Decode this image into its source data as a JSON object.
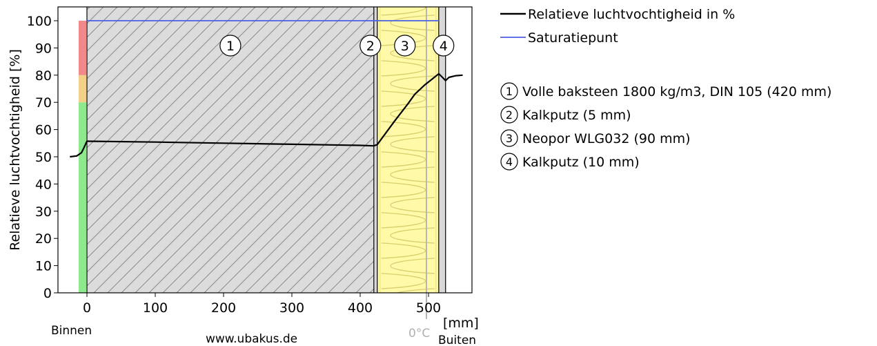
{
  "chart_data": {
    "type": "line",
    "ylabel": "Relatieve luchtvochtigheid [%]",
    "xunit": "[mm]",
    "ylim": [
      0,
      105
    ],
    "xlim": [
      -30,
      560
    ],
    "yticks": [
      0,
      10,
      20,
      30,
      40,
      50,
      60,
      70,
      80,
      90,
      100
    ],
    "xticks": [
      0,
      100,
      200,
      300,
      400,
      500
    ],
    "left_label": "Binnen",
    "right_label": "Buiten",
    "watermark": "www.ubakus.de",
    "zero_c_label": "0°C",
    "zero_c_x": 497,
    "comfort_bar": [
      {
        "from": 0,
        "to": 70,
        "color": "#8ee88e"
      },
      {
        "from": 70,
        "to": 80,
        "color": "#f2d08a"
      },
      {
        "from": 80,
        "to": 100,
        "color": "#f08a8a"
      }
    ],
    "layers": [
      {
        "num": "1",
        "from": 0,
        "to": 420,
        "name": "Volle baksteen 1800 kg/m3, DIN 105 (420 mm)",
        "fill": "#dcdcdc",
        "pattern": "hatch"
      },
      {
        "num": "2",
        "from": 420,
        "to": 425,
        "name": "Kalkputz (5 mm)",
        "fill": "#d8d8d8",
        "pattern": "plain"
      },
      {
        "num": "3",
        "from": 425,
        "to": 515,
        "name": "Neopor WLG032 (90 mm)",
        "fill": "#fff9a8",
        "pattern": "insulation"
      },
      {
        "num": "4",
        "from": 515,
        "to": 525,
        "name": "Kalkputz (10 mm)",
        "fill": "#d8d8d8",
        "pattern": "plain"
      }
    ],
    "series": [
      {
        "name": "Relatieve luchtvochtigheid in %",
        "color": "#000000",
        "x": [
          -25,
          -15,
          -8,
          -4,
          -1,
          0,
          100,
          200,
          300,
          400,
          420,
          425,
          450,
          470,
          480,
          495,
          505,
          515,
          520,
          525,
          530,
          540,
          550
        ],
        "y": [
          50.0,
          50.3,
          51.5,
          53.5,
          55.2,
          55.7,
          55.4,
          55.0,
          54.6,
          54.2,
          54.0,
          54.5,
          63,
          69.5,
          73,
          76.5,
          78.5,
          80.5,
          79.3,
          78.0,
          79.2,
          79.8,
          80.0
        ]
      },
      {
        "name": "Saturatiepunt",
        "color": "#4a5ee8",
        "x": [
          0,
          515
        ],
        "y": [
          100,
          100
        ]
      }
    ]
  }
}
